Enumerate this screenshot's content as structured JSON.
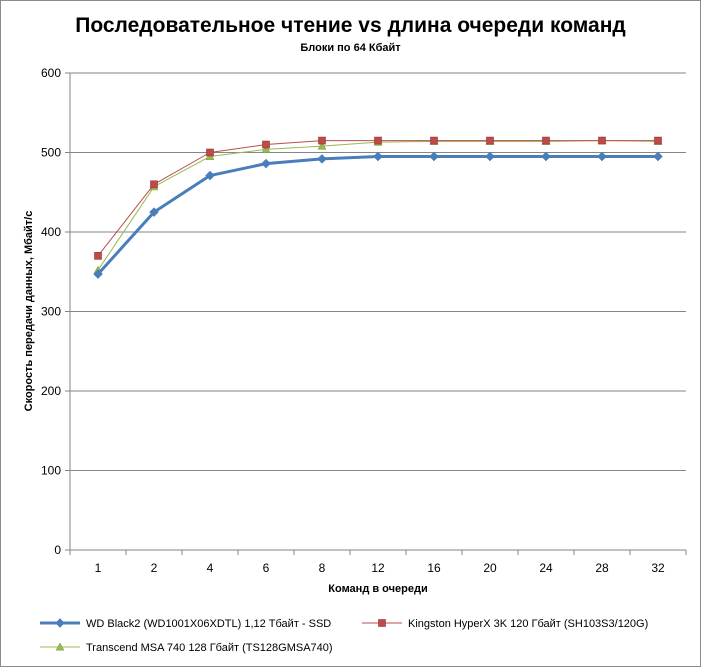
{
  "chart_data": {
    "type": "line",
    "title": "Последовательное чтение vs длина очереди команд",
    "subtitle": "Блоки  по 64 Кбайт",
    "xlabel": "Команд  в очереди",
    "ylabel": "Скорость  передачи данных,  Мбайт/с",
    "categories": [
      "1",
      "2",
      "4",
      "6",
      "8",
      "12",
      "16",
      "20",
      "24",
      "28",
      "32"
    ],
    "ylim": [
      0,
      600
    ],
    "yticks": [
      0,
      100,
      200,
      300,
      400,
      500,
      600
    ],
    "grid": true,
    "legend_position": "bottom",
    "series": [
      {
        "name": "WD Black2 (WD1001X06XDTL) 1,12 Тбайт - SSD",
        "color": "#4a7ebb",
        "marker": "diamond",
        "values": [
          347,
          425,
          471,
          486,
          492,
          495,
          495,
          495,
          495,
          495,
          495
        ]
      },
      {
        "name": "Kingston HyperX  3K 120 Гбайт (SH103S3/120G)",
        "color": "#be4b48",
        "marker": "square",
        "values": [
          370,
          460,
          500,
          510,
          515,
          515,
          515,
          515,
          515,
          515,
          515
        ]
      },
      {
        "name": "Transcend MSA 740 128 Гбайт (TS128GMSA740)",
        "color": "#98b954",
        "marker": "triangle",
        "values": [
          352,
          457,
          495,
          504,
          508,
          513,
          514,
          514,
          514,
          515,
          514
        ]
      }
    ]
  }
}
